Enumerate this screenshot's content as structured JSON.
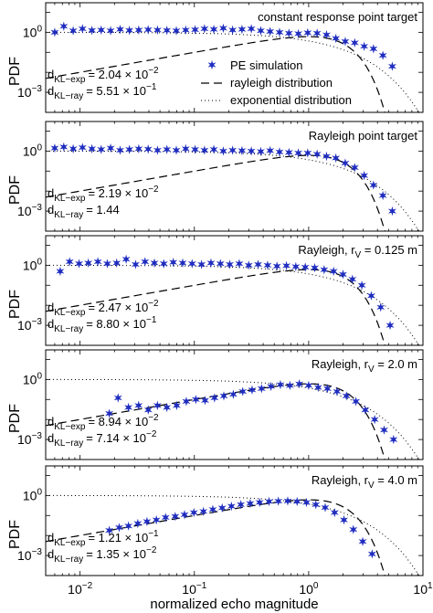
{
  "figure": {
    "xlabel": "normalized echo magnitude",
    "legend": {
      "pe": "PE simulation",
      "rayleigh": "rayleigh distribution",
      "exponential": "exponential distribution"
    }
  },
  "chart_data": {
    "type": "scatter",
    "xscale": "log",
    "yscale": "log",
    "xlim": [
      0.005,
      10
    ],
    "ylim": [
      0.0001,
      30
    ],
    "xlabel": "normalized echo magnitude",
    "x_ticks": [
      {
        "value": 0.01,
        "base": "10",
        "exp": "−2"
      },
      {
        "value": 0.1,
        "base": "10",
        "exp": "−1"
      },
      {
        "value": 1,
        "base": "10",
        "exp": "0"
      },
      {
        "value": 10,
        "base": "10",
        "exp": "1"
      }
    ],
    "y_ticks": [
      {
        "value": 1,
        "base": "10",
        "exp": "0"
      },
      {
        "value": 0.001,
        "base": "10",
        "exp": "−3"
      }
    ],
    "ylabel": "PDF",
    "panels": [
      {
        "title": "constant response point target",
        "title_sub": "",
        "title_suffix": "",
        "kl_exp": {
          "main": "d",
          "sub": "KL−exp",
          "value": "= 2.04 × 10",
          "exp": "−2"
        },
        "kl_ray": {
          "main": "d",
          "sub": "KL−ray",
          "value": "= 5.51 × 10",
          "exp": "−1"
        },
        "legend": true,
        "pe_simulation": {
          "x": [
            0.006,
            0.0072,
            0.0087,
            0.0105,
            0.0127,
            0.0153,
            0.0185,
            0.0224,
            0.027,
            0.0326,
            0.0394,
            0.0476,
            0.0575,
            0.0695,
            0.084,
            0.1015,
            0.1226,
            0.148,
            0.179,
            0.216,
            0.261,
            0.315,
            0.381,
            0.46,
            0.556,
            0.672,
            0.812,
            0.981,
            1.186,
            1.433,
            1.73,
            2.09,
            2.53,
            3.06,
            3.69,
            4.46,
            5.39
          ],
          "y": [
            1.0,
            2.0,
            1.2,
            1.5,
            1.25,
            1.3,
            1.2,
            1.4,
            1.25,
            1.3,
            1.35,
            1.3,
            1.25,
            1.2,
            1.3,
            1.35,
            1.5,
            1.4,
            1.6,
            1.3,
            1.4,
            1.5,
            1.2,
            1.1,
            1.0,
            0.9,
            0.85,
            0.95,
            0.9,
            0.75,
            0.5,
            0.35,
            0.3,
            0.2,
            0.15,
            0.07,
            0.02
          ]
        }
      },
      {
        "title": "Rayleigh point target",
        "title_sub": "",
        "title_suffix": "",
        "kl_exp": {
          "main": "d",
          "sub": "KL−exp",
          "value": "= 2.19 × 10",
          "exp": "−2"
        },
        "kl_ray": {
          "main": "d",
          "sub": "KL−ray",
          "value": "= 1.44",
          "exp": ""
        },
        "legend": false,
        "pe_simulation": {
          "x": [
            0.006,
            0.0072,
            0.0087,
            0.0105,
            0.0127,
            0.0153,
            0.0185,
            0.0224,
            0.027,
            0.0326,
            0.0394,
            0.0476,
            0.0575,
            0.0695,
            0.084,
            0.1015,
            0.1226,
            0.148,
            0.179,
            0.216,
            0.261,
            0.315,
            0.381,
            0.46,
            0.556,
            0.672,
            0.812,
            0.981,
            1.186,
            1.433,
            1.73,
            2.09,
            2.53,
            3.06,
            3.69,
            4.46,
            5.39
          ],
          "y": [
            1.4,
            1.6,
            1.3,
            1.5,
            1.3,
            1.2,
            1.4,
            1.1,
            1.2,
            1.3,
            1.25,
            1.1,
            1.2,
            1.1,
            1.3,
            1.2,
            1.1,
            1.2,
            1.0,
            1.1,
            1.05,
            1.0,
            0.95,
            1.05,
            0.9,
            0.85,
            0.8,
            0.8,
            0.7,
            0.55,
            0.45,
            0.25,
            0.15,
            0.06,
            0.02,
            0.006,
            0.001
          ]
        }
      },
      {
        "title": "Rayleigh, r",
        "title_sub": "V",
        "title_suffix": " = 0.125 m",
        "kl_exp": {
          "main": "d",
          "sub": "KL−exp",
          "value": "= 2.47 × 10",
          "exp": "−2"
        },
        "kl_ray": {
          "main": "d",
          "sub": "KL−ray",
          "value": "= 8.80 × 10",
          "exp": "−1"
        },
        "legend": false,
        "pe_simulation": {
          "x": [
            0.0067,
            0.0081,
            0.0098,
            0.0118,
            0.0143,
            0.0173,
            0.0209,
            0.0253,
            0.0306,
            0.037,
            0.0447,
            0.054,
            0.0653,
            0.079,
            0.0955,
            0.1155,
            0.1397,
            0.169,
            0.204,
            0.247,
            0.299,
            0.361,
            0.437,
            0.528,
            0.639,
            0.772,
            0.934,
            1.13,
            1.366,
            1.652,
            1.997,
            2.415,
            2.92,
            3.53,
            4.27,
            5.16
          ],
          "y": [
            0.5,
            1.5,
            1.2,
            1.3,
            1.5,
            1.2,
            1.3,
            2.0,
            1.1,
            1.5,
            1.3,
            1.2,
            1.4,
            1.3,
            1.2,
            1.1,
            1.3,
            1.2,
            1.1,
            1.2,
            1.0,
            1.1,
            1.0,
            0.9,
            0.95,
            0.85,
            0.8,
            0.75,
            0.6,
            0.5,
            0.35,
            0.2,
            0.1,
            0.03,
            0.008,
            0.001
          ]
        }
      },
      {
        "title": "Rayleigh, r",
        "title_sub": "V",
        "title_suffix": " = 2.0 m",
        "kl_exp": {
          "main": "d",
          "sub": "KL−exp",
          "value": "= 8.94 × 10",
          "exp": "−2"
        },
        "kl_ray": {
          "main": "d",
          "sub": "KL−ray",
          "value": "= 7.14 × 10",
          "exp": "−2"
        },
        "legend": false,
        "pe_simulation": {
          "x": [
            0.018,
            0.0215,
            0.0265,
            0.0325,
            0.0395,
            0.0475,
            0.0575,
            0.07,
            0.085,
            0.103,
            0.124,
            0.15,
            0.181,
            0.219,
            0.265,
            0.32,
            0.387,
            0.468,
            0.566,
            0.685,
            0.828,
            1.0,
            1.21,
            1.46,
            1.77,
            2.14,
            2.59,
            3.13,
            3.78,
            4.57,
            5.53
          ],
          "y": [
            0.02,
            0.12,
            0.04,
            0.05,
            0.03,
            0.05,
            0.04,
            0.05,
            0.08,
            0.1,
            0.09,
            0.12,
            0.15,
            0.18,
            0.25,
            0.3,
            0.35,
            0.45,
            0.55,
            0.5,
            0.6,
            0.5,
            0.4,
            0.35,
            0.25,
            0.15,
            0.08,
            0.03,
            0.01,
            0.003,
            0.001
          ]
        }
      },
      {
        "title": "Rayleigh, r",
        "title_sub": "V",
        "title_suffix": " = 4.0 m",
        "kl_exp": {
          "main": "d",
          "sub": "KL−exp",
          "value": "= 1.21 × 10",
          "exp": "−1"
        },
        "kl_ray": {
          "main": "d",
          "sub": "KL−ray",
          "value": "= 1.35 × 10",
          "exp": "−2"
        },
        "legend": false,
        "pe_simulation": {
          "x": [
            0.018,
            0.022,
            0.0265,
            0.032,
            0.0385,
            0.0465,
            0.056,
            0.068,
            0.082,
            0.099,
            0.12,
            0.145,
            0.175,
            0.211,
            0.255,
            0.308,
            0.372,
            0.45,
            0.543,
            0.656,
            0.792,
            0.957,
            1.156,
            1.396,
            1.687,
            2.037,
            2.46,
            2.97,
            3.59
          ],
          "y": [
            0.018,
            0.025,
            0.03,
            0.04,
            0.05,
            0.06,
            0.08,
            0.09,
            0.11,
            0.14,
            0.16,
            0.2,
            0.24,
            0.29,
            0.35,
            0.4,
            0.45,
            0.5,
            0.52,
            0.53,
            0.5,
            0.45,
            0.35,
            0.25,
            0.14,
            0.06,
            0.02,
            0.005,
            0.0012
          ]
        }
      }
    ]
  }
}
